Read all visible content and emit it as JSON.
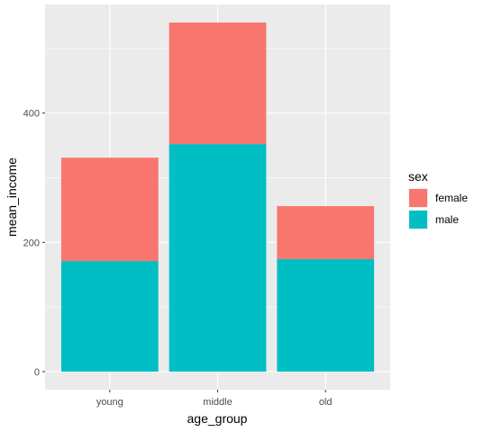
{
  "chart_data": {
    "type": "bar",
    "stacked": true,
    "title": "",
    "xlabel": "age_group",
    "ylabel": "mean_income",
    "categories": [
      "young",
      "middle",
      "old"
    ],
    "series": [
      {
        "name": "female",
        "values": [
          160,
          188,
          82
        ],
        "color": "#F8766D"
      },
      {
        "name": "male",
        "values": [
          171,
          352,
          174
        ],
        "color": "#00BFC4"
      }
    ],
    "ylim": [
      -28,
      568
    ],
    "yticks": [
      0,
      200,
      400
    ],
    "grid": true,
    "panel_background": "#EBEBEB",
    "legend": {
      "title": "sex",
      "position": "right",
      "entries": [
        "female",
        "male"
      ]
    }
  }
}
